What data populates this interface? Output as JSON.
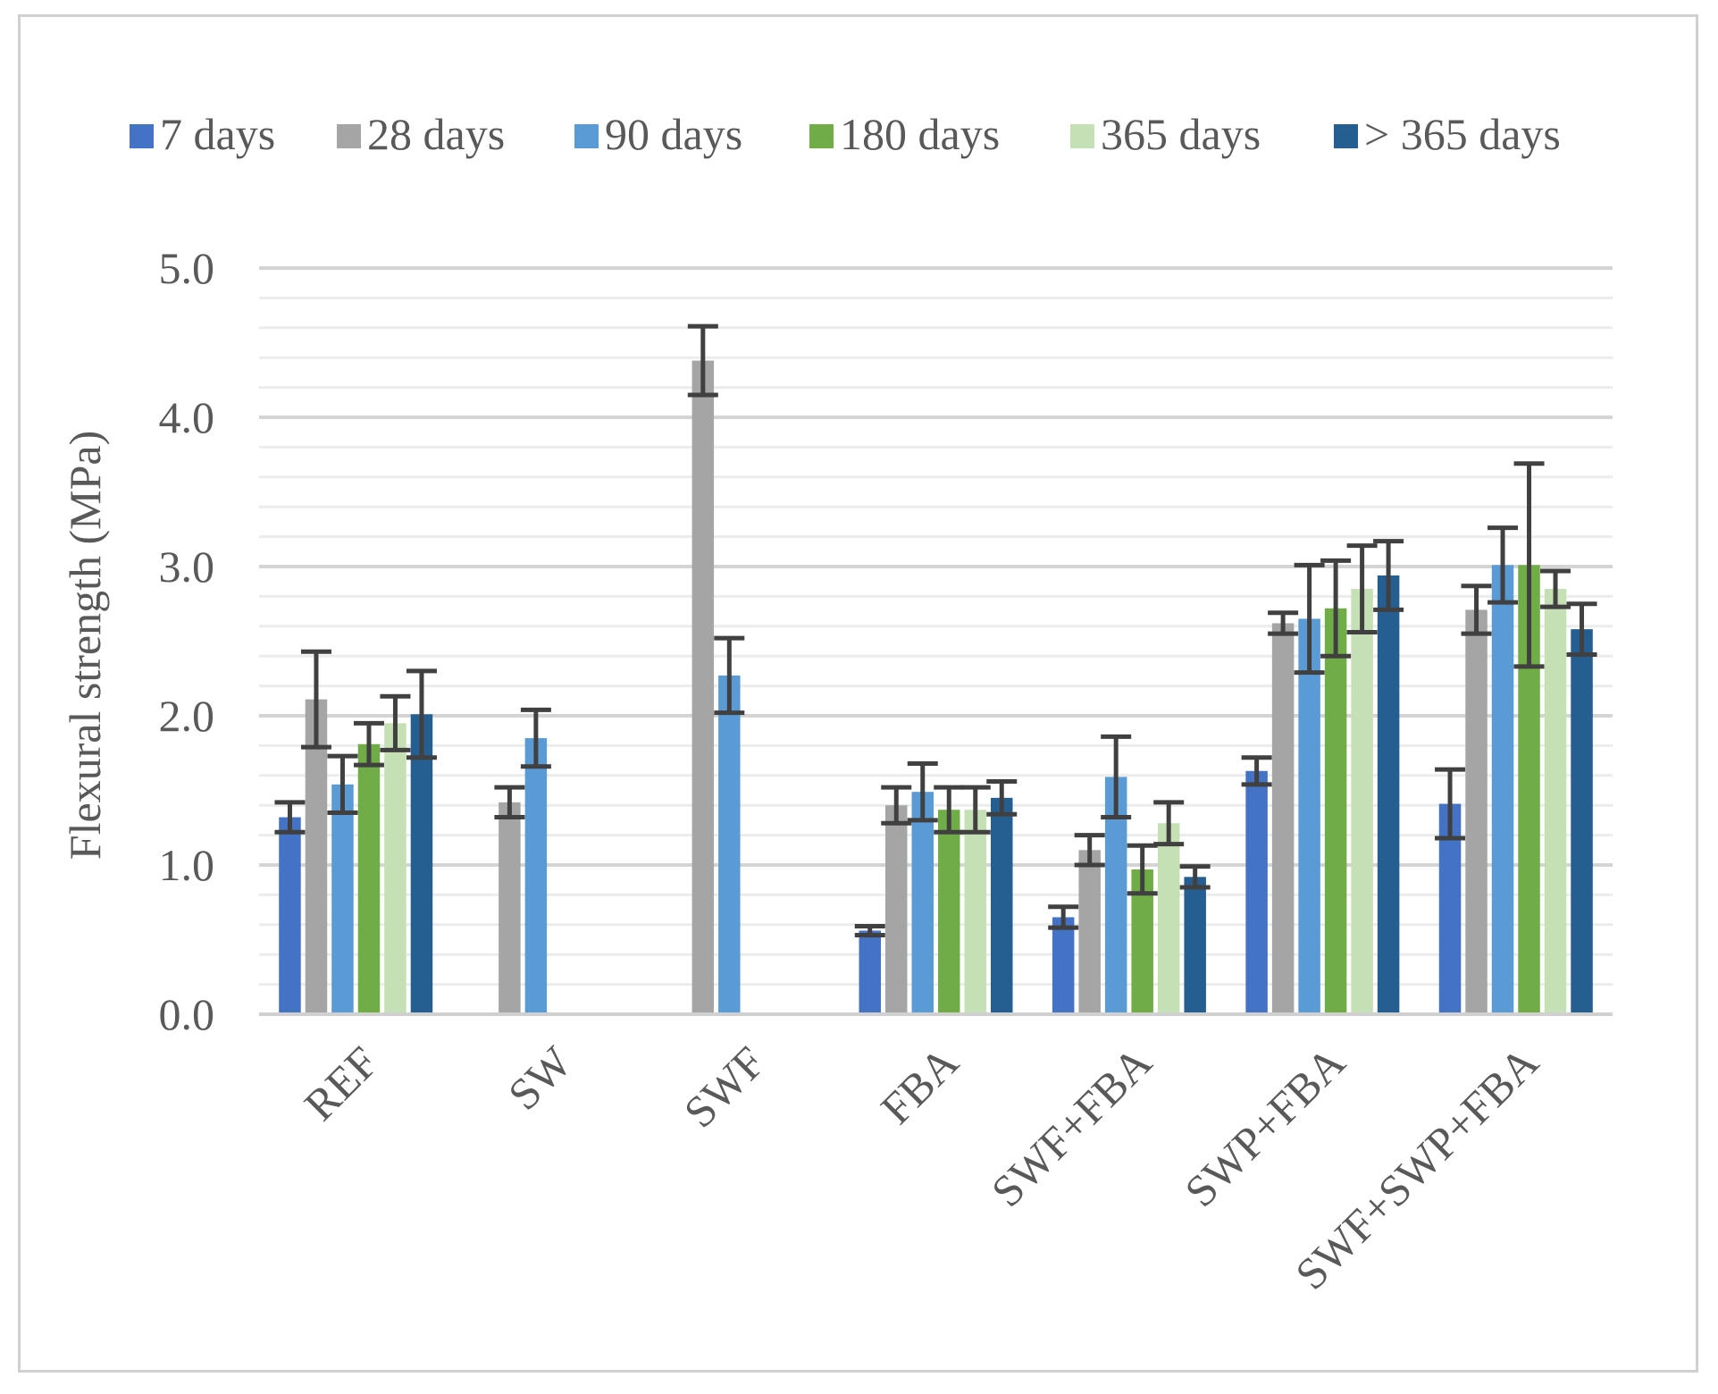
{
  "chart_data": {
    "type": "bar",
    "title": "",
    "xlabel": "",
    "ylabel": "Flexural strength (MPa)",
    "ylim": [
      0,
      5
    ],
    "major_ticks": [
      "0.0",
      "1.0",
      "2.0",
      "3.0",
      "4.0",
      "5.0"
    ],
    "major_tick_values": [
      0,
      1,
      2,
      3,
      4,
      5
    ],
    "minor_step": 0.2,
    "grid": true,
    "legend_position": "top",
    "categories": [
      "REF",
      "SW",
      "SWF",
      "FBA",
      "SWF+FBA",
      "SWP+FBA",
      "SWF+SWP+FBA"
    ],
    "series": [
      {
        "name": "7 days",
        "color": "#4472c4",
        "values": [
          1.32,
          null,
          null,
          0.56,
          0.65,
          1.63,
          1.41
        ],
        "errors": [
          0.1,
          null,
          null,
          0.03,
          0.07,
          0.09,
          0.23
        ]
      },
      {
        "name": "28 days",
        "color": "#a5a5a5",
        "values": [
          2.11,
          1.42,
          4.38,
          1.4,
          1.1,
          2.62,
          2.71
        ],
        "errors": [
          0.32,
          0.1,
          0.23,
          0.12,
          0.1,
          0.07,
          0.16
        ]
      },
      {
        "name": "90 days",
        "color": "#5b9bd5",
        "values": [
          1.54,
          1.85,
          2.27,
          1.49,
          1.59,
          2.65,
          3.01
        ],
        "errors": [
          0.19,
          0.19,
          0.25,
          0.19,
          0.27,
          0.36,
          0.25
        ]
      },
      {
        "name": "180 days",
        "color": "#70ad47",
        "values": [
          1.81,
          null,
          null,
          1.37,
          0.97,
          2.72,
          3.01
        ],
        "errors": [
          0.14,
          null,
          null,
          0.15,
          0.16,
          0.32,
          0.68
        ]
      },
      {
        "name": "365 days",
        "color": "#c5e0b4",
        "values": [
          1.95,
          null,
          null,
          1.37,
          1.28,
          2.85,
          2.85
        ],
        "errors": [
          0.18,
          null,
          null,
          0.15,
          0.14,
          0.29,
          0.12
        ]
      },
      {
        "name": "> 365 days",
        "color": "#255e91",
        "values": [
          2.01,
          null,
          null,
          1.45,
          0.92,
          2.94,
          2.58
        ],
        "errors": [
          0.29,
          null,
          null,
          0.11,
          0.07,
          0.23,
          0.17
        ]
      }
    ]
  }
}
